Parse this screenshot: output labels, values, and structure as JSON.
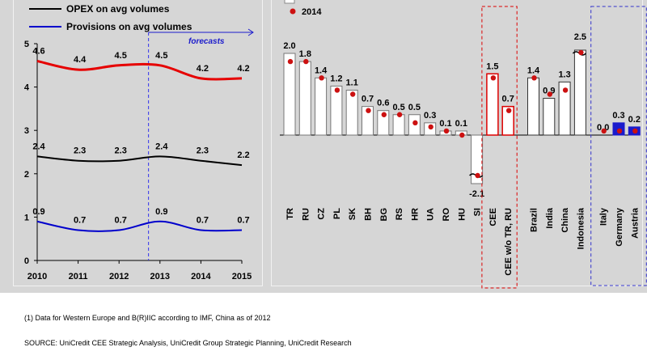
{
  "footnote": "(1) Data for Western Europe and B(R)IIC according to IMF, China as of 2012",
  "source": "SOURCE: UniCredit CEE Strategic Analysis, UniCredit Group Strategic Planning, UniCredit Research",
  "chart_data": [
    {
      "type": "line",
      "x": [
        "2010",
        "2011",
        "2012",
        "2013",
        "2014",
        "2015"
      ],
      "series": [
        {
          "name": "",
          "values": [
            4.6,
            4.4,
            4.5,
            4.5,
            4.2,
            4.2
          ],
          "color": "#e60000"
        },
        {
          "name": "OPEX on avg volumes",
          "values": [
            2.4,
            2.3,
            2.3,
            2.4,
            2.3,
            2.2
          ],
          "color": "#000000"
        },
        {
          "name": "Provisions on avg volumes",
          "values": [
            0.9,
            0.7,
            0.7,
            0.9,
            0.7,
            0.7
          ],
          "color": "#0000cc"
        }
      ],
      "yticks": [
        "0",
        "1",
        "2",
        "3",
        "4",
        "5"
      ],
      "ylim": [
        0,
        5
      ],
      "annotation": "forecasts",
      "grid": false,
      "legend": "top-left"
    },
    {
      "type": "bar",
      "categories": [
        "TR",
        "RU",
        "CZ",
        "PL",
        "SK",
        "BH",
        "BG",
        "RS",
        "HR",
        "UA",
        "RO",
        "HU",
        "SI",
        "CEE",
        "CEE w/o TR, RU",
        "Brazil",
        "India",
        "China",
        "Indonesia",
        "Italy",
        "Germany",
        "Austria"
      ],
      "values": [
        2.0,
        1.8,
        1.4,
        1.2,
        1.1,
        0.7,
        0.6,
        0.5,
        0.5,
        0.3,
        0.1,
        0.1,
        -2.1,
        1.5,
        0.7,
        1.4,
        0.9,
        1.3,
        2.5,
        0.0,
        0.3,
        0.2
      ],
      "labels": [
        "2.0",
        "1.8",
        "1.4",
        "1.2",
        "1.1",
        "0.7",
        "0.6",
        "0.5",
        "0.5",
        "0.3",
        "0.1",
        "0.1",
        "-2.1",
        "1.5",
        "0.7",
        "1.4",
        "0.9",
        "1.3",
        "2.5",
        "0.0",
        "0.3",
        "0.2"
      ],
      "markers_2014": [
        1.8,
        1.8,
        1.4,
        1.1,
        1.0,
        0.6,
        0.5,
        0.5,
        0.3,
        0.2,
        0.1,
        0.0,
        -0.5,
        1.4,
        0.6,
        1.4,
        1.0,
        1.1,
        2.5,
        0.1,
        0.1,
        0.1
      ],
      "marker_legend": "2014",
      "bar_colors": {
        "country": "#ffffff",
        "cee": "#ffffff",
        "cee_outline": "#dd0000",
        "emerging": "#ffffff",
        "western": "#1a1acc"
      },
      "marker_color": "#cc1111",
      "broken_axis_labels": [
        "SI",
        "Indonesia"
      ],
      "grid": false
    }
  ]
}
